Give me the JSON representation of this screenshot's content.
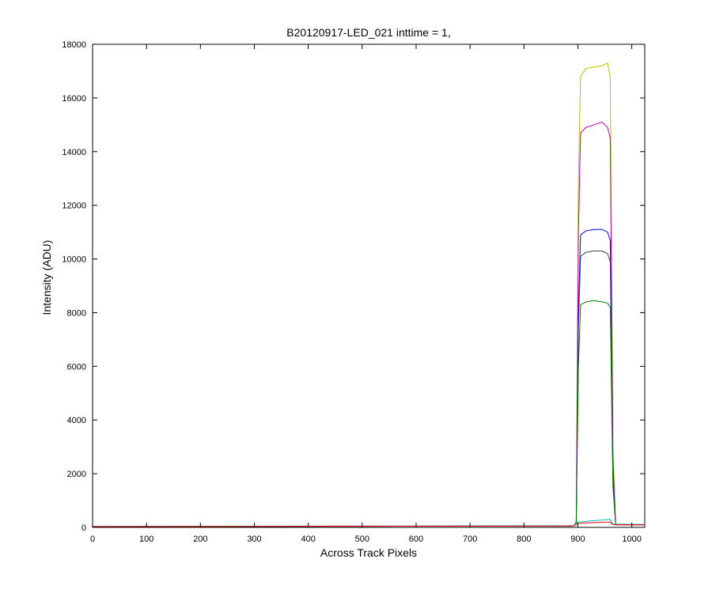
{
  "chart_data": {
    "type": "line",
    "title": "B20120917-LED_021 inttime = 1,",
    "xlabel": "Across Track Pixels",
    "ylabel": "Intensity (ADU)",
    "xlim": [
      0,
      1024
    ],
    "ylim": [
      0,
      18000
    ],
    "xticks": [
      0,
      100,
      200,
      300,
      400,
      500,
      600,
      700,
      800,
      900,
      1000
    ],
    "yticks": [
      0,
      2000,
      4000,
      6000,
      8000,
      10000,
      12000,
      14000,
      16000,
      18000
    ],
    "grid": false,
    "legend": "none",
    "series": [
      {
        "color": "#bfbf00",
        "x": [
          0,
          880,
          893,
          897,
          901,
          905,
          915,
          930,
          945,
          955,
          960,
          965,
          970,
          1024
        ],
        "y": [
          30,
          50,
          60,
          200,
          13000,
          16800,
          17100,
          17150,
          17200,
          17300,
          16800,
          3000,
          100,
          100
        ]
      },
      {
        "color": "#bf00bf",
        "x": [
          0,
          880,
          893,
          897,
          901,
          905,
          915,
          930,
          945,
          955,
          960,
          965,
          970,
          1024
        ],
        "y": [
          30,
          50,
          60,
          200,
          11000,
          14700,
          14900,
          15000,
          15100,
          14900,
          14500,
          2500,
          100,
          100
        ]
      },
      {
        "color": "#0000ff",
        "x": [
          0,
          880,
          893,
          897,
          901,
          905,
          915,
          930,
          945,
          955,
          960,
          965,
          970,
          1024
        ],
        "y": [
          30,
          50,
          60,
          200,
          8000,
          10900,
          11050,
          11100,
          11100,
          11000,
          10700,
          2000,
          100,
          100
        ]
      },
      {
        "color": "#404040",
        "x": [
          0,
          880,
          893,
          897,
          901,
          905,
          915,
          930,
          945,
          955,
          960,
          965,
          970,
          1024
        ],
        "y": [
          30,
          50,
          60,
          200,
          7500,
          10100,
          10250,
          10300,
          10300,
          10200,
          9900,
          1800,
          100,
          100
        ]
      },
      {
        "color": "#008000",
        "x": [
          0,
          880,
          893,
          897,
          901,
          905,
          915,
          930,
          945,
          955,
          960,
          965,
          970,
          1024
        ],
        "y": [
          30,
          50,
          60,
          200,
          6000,
          8300,
          8400,
          8450,
          8400,
          8350,
          8200,
          1500,
          100,
          100
        ]
      },
      {
        "color": "#00bfbf",
        "x": [
          0,
          880,
          893,
          900,
          930,
          960,
          965,
          1024
        ],
        "y": [
          40,
          60,
          70,
          200,
          250,
          300,
          120,
          110
        ]
      },
      {
        "color": "#ff0000",
        "x": [
          0,
          880,
          893,
          900,
          930,
          960,
          965,
          1024
        ],
        "y": [
          30,
          50,
          60,
          150,
          180,
          200,
          100,
          100
        ]
      }
    ]
  }
}
